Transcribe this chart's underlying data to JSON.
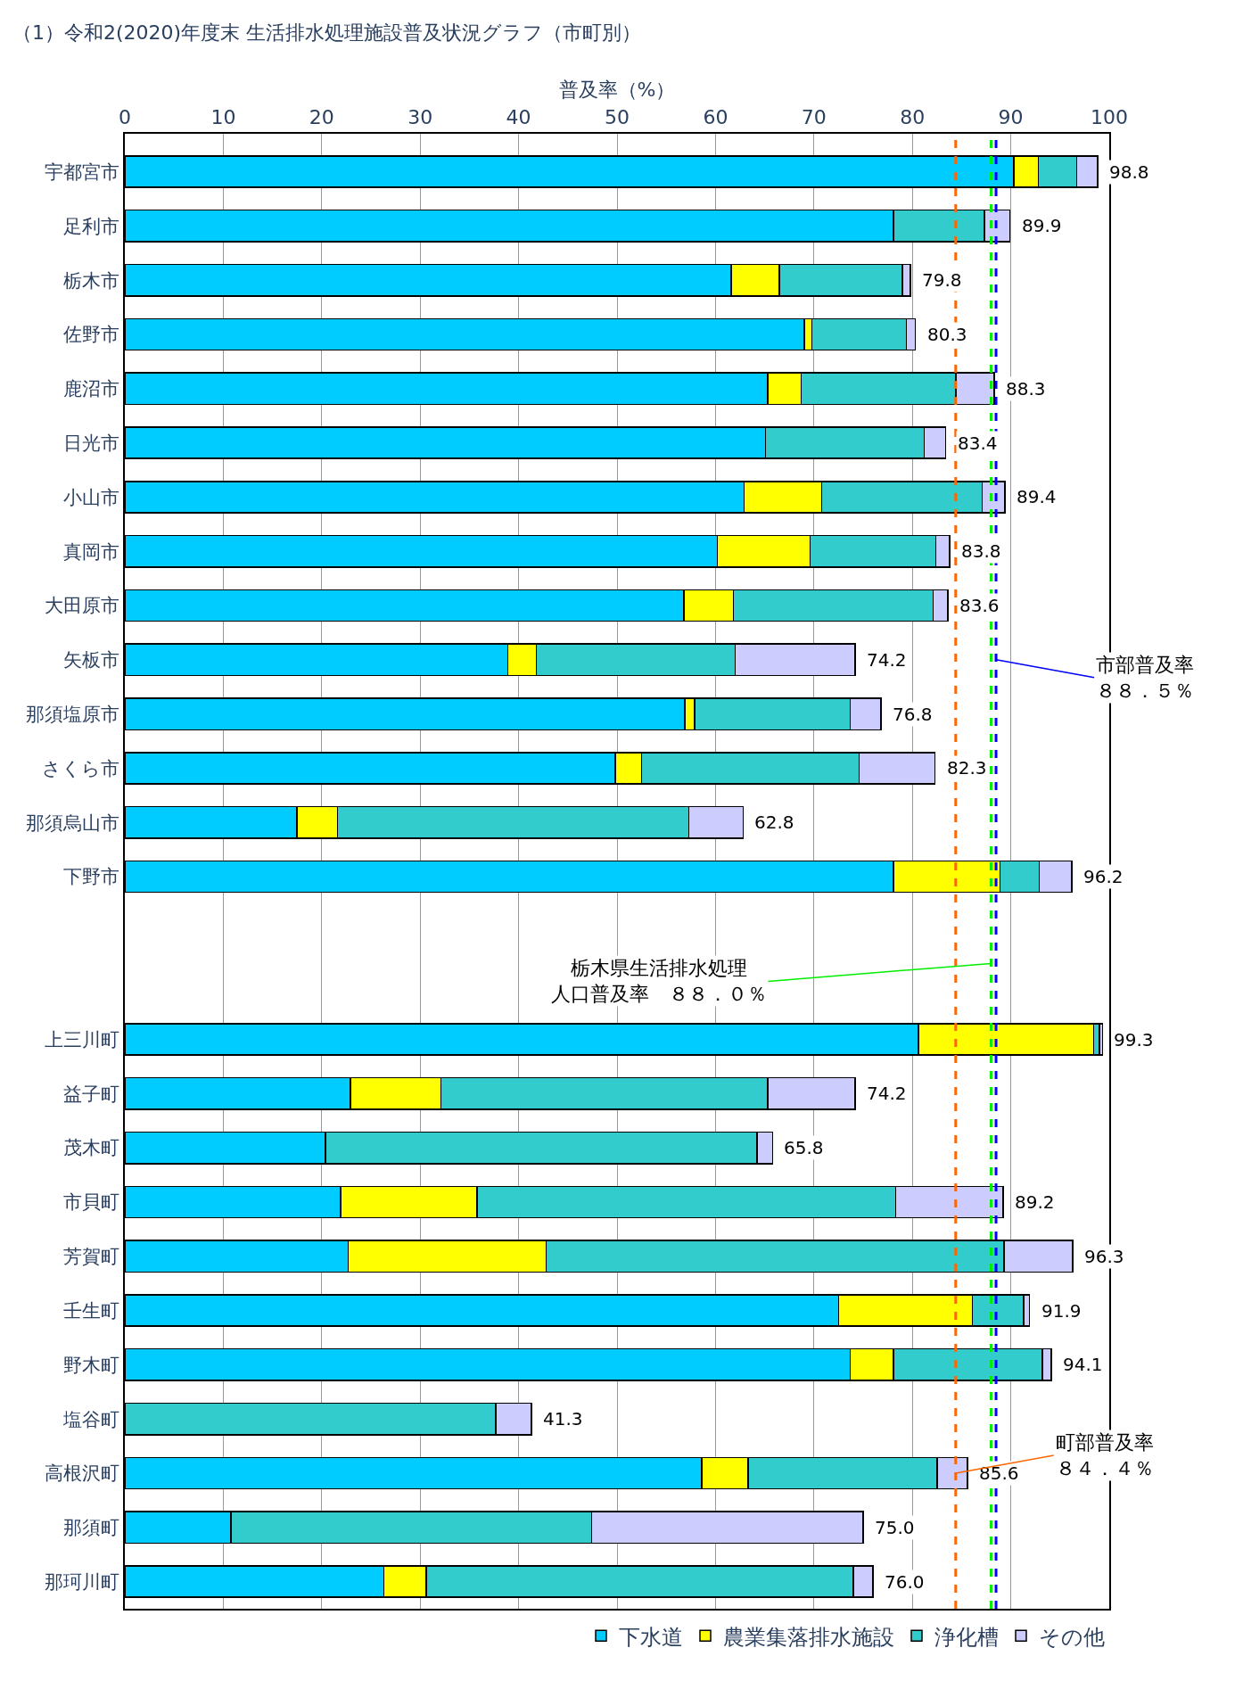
{
  "chart_data": {
    "type": "bar",
    "orientation": "horizontal",
    "stacked": true,
    "title": "（1）令和2(2020)年度末 生活排水処理施設普及状況グラフ（市町別）",
    "xlabel": "普及率（%）",
    "categories": [
      "宇都宮市",
      "足利市",
      "栃木市",
      "佐野市",
      "鹿沼市",
      "日光市",
      "小山市",
      "真岡市",
      "大田原市",
      "矢板市",
      "那須塩原市",
      "さくら市",
      "那須烏山市",
      "下野市",
      null,
      null,
      "上三川町",
      "益子町",
      "茂木町",
      "市貝町",
      "芳賀町",
      "壬生町",
      "野木町",
      "塩谷町",
      "高根沢町",
      "那須町",
      "那珂川町"
    ],
    "series": [
      {
        "name": "下水道",
        "color": "#00ccff",
        "values": [
          90.3,
          78.1,
          61.6,
          69.0,
          65.3,
          65.1,
          62.9,
          60.2,
          56.8,
          38.9,
          56.9,
          49.8,
          17.5,
          78.1,
          null,
          null,
          80.6,
          22.9,
          20.4,
          21.9,
          22.7,
          72.5,
          73.7,
          null,
          58.6,
          10.8,
          26.3
        ]
      },
      {
        "name": "農業集落排水施設",
        "color": "#ffff00",
        "values": [
          2.5,
          null,
          4.9,
          0.8,
          3.4,
          null,
          7.9,
          9.4,
          5.0,
          2.9,
          1.0,
          2.7,
          4.1,
          10.8,
          null,
          null,
          17.8,
          9.2,
          null,
          13.9,
          20.1,
          13.6,
          4.4,
          null,
          4.7,
          null,
          4.3
        ]
      },
      {
        "name": "浄化槽",
        "color": "#33cccc",
        "values": [
          3.9,
          9.2,
          12.5,
          9.6,
          15.7,
          16.1,
          16.3,
          12.8,
          20.3,
          20.2,
          15.8,
          22.1,
          35.7,
          4.0,
          null,
          null,
          0.6,
          33.2,
          43.8,
          42.5,
          46.5,
          5.2,
          15.1,
          37.7,
          19.2,
          36.6,
          43.4
        ]
      },
      {
        "name": "その他",
        "color": "#ccccff",
        "values": [
          2.1,
          2.6,
          0.8,
          0.9,
          3.9,
          2.2,
          2.3,
          1.4,
          1.5,
          12.2,
          3.1,
          7.7,
          5.5,
          3.3,
          null,
          null,
          0.3,
          8.9,
          1.6,
          10.9,
          7.0,
          0.6,
          0.9,
          3.6,
          3.1,
          27.6,
          2.0
        ]
      }
    ],
    "totals": [
      "98.8",
      "89.9",
      "79.8",
      "80.3",
      "88.3",
      "83.4",
      "89.4",
      "83.8",
      "83.6",
      "74.2",
      "76.8",
      "82.3",
      "62.8",
      "96.2",
      null,
      null,
      "99.3",
      "74.2",
      "65.8",
      "89.2",
      "96.3",
      "91.9",
      "94.1",
      "41.3",
      "85.6",
      "75.0",
      "76.0"
    ],
    "xlim": [
      0,
      100
    ],
    "xticks": [
      0,
      10,
      20,
      30,
      40,
      50,
      60,
      70,
      80,
      90,
      100
    ],
    "grid": "x",
    "legend": "bottom",
    "ref_lines": [
      {
        "axis": "x",
        "value": 88.5,
        "label": "市部普及率８８．５％",
        "color": "#0000ff",
        "line_style": "dashed"
      },
      {
        "axis": "x",
        "value": 88.0,
        "label": "栃木県生活排水処理人口普及率　８８．０％",
        "color": "#00ee00",
        "line_style": "dashed"
      },
      {
        "axis": "x",
        "value": 84.4,
        "label": "町部普及率８４．４％",
        "color": "#ff6600",
        "line_style": "dashed"
      }
    ]
  }
}
